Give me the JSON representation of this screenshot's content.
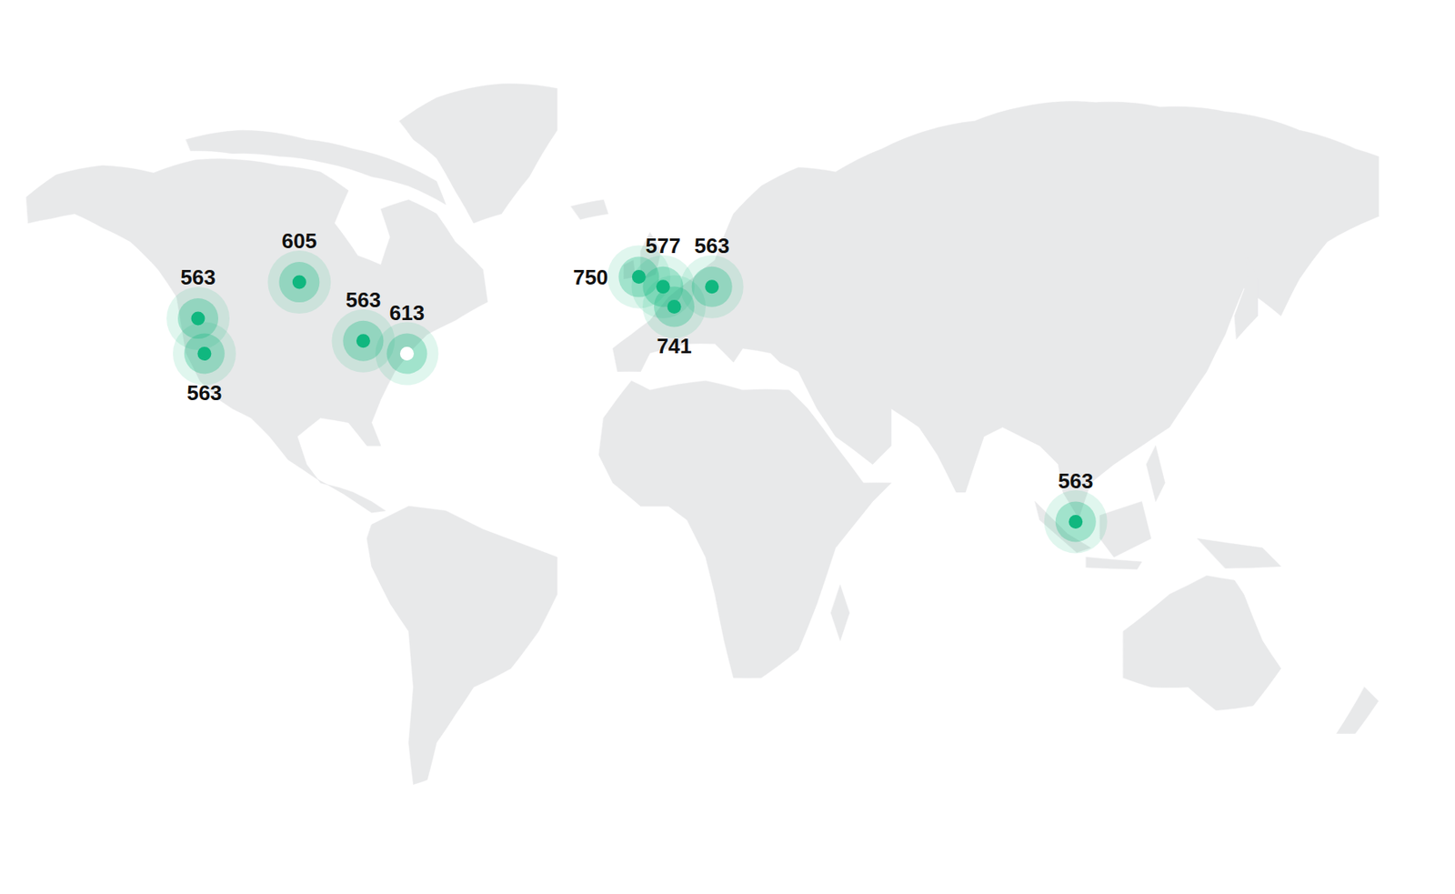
{
  "chart_data": {
    "type": "map",
    "lon": [
      -117.3,
      -115.7,
      -91.8,
      -75.7,
      -64.7,
      -6.3,
      -0.2,
      2.6,
      12.1,
      103.7
    ],
    "lat": [
      46.8,
      40.4,
      52.7,
      42.8,
      40.4,
      53.5,
      52.0,
      48.8,
      52.0,
      1.9
    ],
    "values": [
      563,
      563,
      605,
      563,
      613,
      750,
      577,
      741,
      563,
      563
    ],
    "color": "#10b77f",
    "colors": [
      "#10b77f",
      "#10b77f",
      "#10b77f",
      "#10b77f",
      "#ffffff",
      "#10b77f",
      "#10b77f",
      "#10b77f",
      "#10b77f",
      "#10b77f"
    ],
    "data_labels": true,
    "tick_labels": false
  }
}
